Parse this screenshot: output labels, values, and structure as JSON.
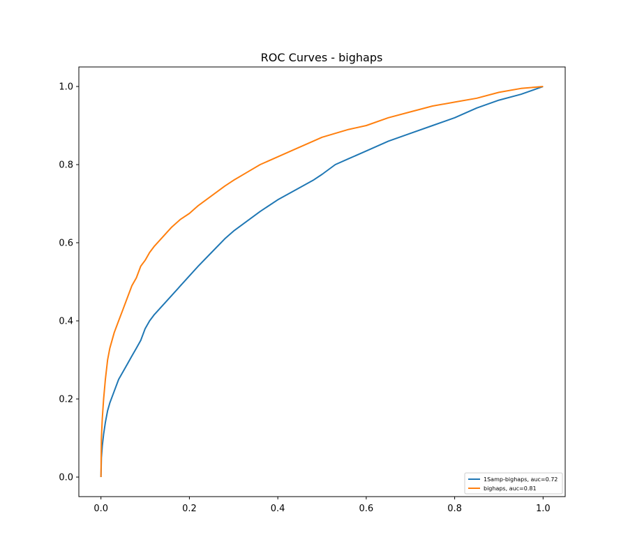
{
  "chart_data": {
    "type": "line",
    "title": "ROC Curves - bighaps",
    "xlabel": "",
    "ylabel": "",
    "xlim": [
      -0.05,
      1.05
    ],
    "ylim": [
      -0.05,
      1.05
    ],
    "x_ticks": [
      0.0,
      0.2,
      0.4,
      0.6,
      0.8,
      1.0
    ],
    "x_tick_labels": [
      "0.0",
      "0.2",
      "0.4",
      "0.6",
      "0.8",
      "1.0"
    ],
    "y_ticks": [
      0.0,
      0.2,
      0.4,
      0.6,
      0.8,
      1.0
    ],
    "y_tick_labels": [
      "0.0",
      "0.2",
      "0.4",
      "0.6",
      "0.8",
      "1.0"
    ],
    "grid": false,
    "legend_position": "lower-right",
    "series": [
      {
        "name": "1Samp-bighaps, auc=0.72",
        "color": "#1f77b4",
        "x": [
          0.0,
          0.001,
          0.003,
          0.006,
          0.01,
          0.015,
          0.02,
          0.03,
          0.04,
          0.05,
          0.06,
          0.07,
          0.08,
          0.09,
          0.1,
          0.11,
          0.12,
          0.14,
          0.16,
          0.18,
          0.2,
          0.22,
          0.25,
          0.28,
          0.3,
          0.33,
          0.36,
          0.4,
          0.44,
          0.48,
          0.5,
          0.53,
          0.56,
          0.6,
          0.65,
          0.7,
          0.75,
          0.8,
          0.85,
          0.9,
          0.95,
          1.0
        ],
        "y": [
          0.0,
          0.05,
          0.08,
          0.11,
          0.14,
          0.17,
          0.19,
          0.22,
          0.25,
          0.27,
          0.29,
          0.31,
          0.33,
          0.35,
          0.38,
          0.4,
          0.415,
          0.44,
          0.465,
          0.49,
          0.515,
          0.54,
          0.575,
          0.61,
          0.63,
          0.655,
          0.68,
          0.71,
          0.735,
          0.76,
          0.775,
          0.8,
          0.815,
          0.835,
          0.86,
          0.88,
          0.9,
          0.92,
          0.945,
          0.965,
          0.98,
          1.0
        ]
      },
      {
        "name": "bighaps, auc=0.81",
        "color": "#ff7f0e",
        "x": [
          0.0,
          0.001,
          0.003,
          0.006,
          0.01,
          0.015,
          0.02,
          0.03,
          0.04,
          0.05,
          0.06,
          0.07,
          0.08,
          0.09,
          0.1,
          0.11,
          0.12,
          0.14,
          0.16,
          0.18,
          0.2,
          0.22,
          0.25,
          0.28,
          0.3,
          0.33,
          0.36,
          0.4,
          0.44,
          0.48,
          0.5,
          0.53,
          0.56,
          0.6,
          0.65,
          0.7,
          0.75,
          0.8,
          0.85,
          0.9,
          0.95,
          1.0
        ],
        "y": [
          0.0,
          0.1,
          0.15,
          0.2,
          0.25,
          0.3,
          0.33,
          0.37,
          0.4,
          0.43,
          0.46,
          0.49,
          0.51,
          0.54,
          0.555,
          0.575,
          0.59,
          0.615,
          0.64,
          0.66,
          0.675,
          0.695,
          0.72,
          0.745,
          0.76,
          0.78,
          0.8,
          0.82,
          0.84,
          0.86,
          0.87,
          0.88,
          0.89,
          0.9,
          0.92,
          0.935,
          0.95,
          0.96,
          0.97,
          0.985,
          0.995,
          1.0
        ]
      }
    ]
  }
}
